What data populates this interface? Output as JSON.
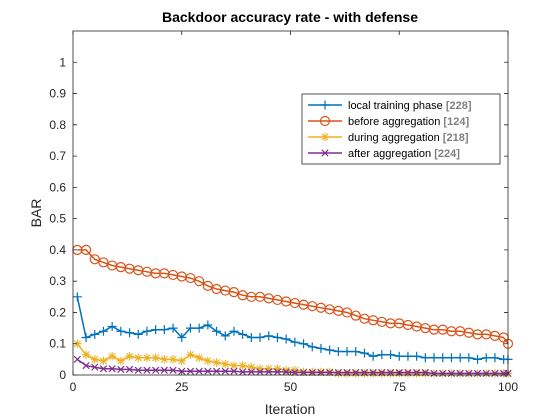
{
  "chart_data": {
    "type": "line",
    "title": "Backdoor accuracy rate - with defense",
    "xlabel": "Iteration",
    "ylabel": "BAR",
    "xlim": [
      0,
      100
    ],
    "ylim": [
      0,
      1.1
    ],
    "xticks": [
      0,
      25,
      50,
      75,
      100
    ],
    "yticks": [
      0,
      0.1,
      0.2,
      0.3,
      0.4,
      0.5,
      0.6,
      0.7,
      0.8,
      0.9,
      1
    ],
    "ytick_labels": [
      "0",
      "0.1",
      "0.2",
      "0.3",
      "0.4",
      "0.5",
      "0.6",
      "0.7",
      "0.8",
      "0.9",
      "1"
    ],
    "xtick_labels": [
      "0",
      "25",
      "50",
      "75",
      "100"
    ],
    "legend_position": "top-right",
    "grid": false,
    "x": [
      1,
      3,
      5,
      7,
      9,
      11,
      13,
      15,
      17,
      19,
      21,
      23,
      25,
      27,
      29,
      31,
      33,
      35,
      37,
      39,
      41,
      43,
      45,
      47,
      49,
      51,
      53,
      55,
      57,
      59,
      61,
      63,
      65,
      67,
      69,
      71,
      73,
      75,
      77,
      79,
      81,
      83,
      85,
      87,
      89,
      91,
      93,
      95,
      97,
      99,
      100
    ],
    "series": [
      {
        "name": "local training phase",
        "count": "[228]",
        "color": "#0072BD",
        "marker": "plus",
        "values": [
          0.25,
          0.12,
          0.13,
          0.14,
          0.155,
          0.14,
          0.135,
          0.13,
          0.14,
          0.145,
          0.145,
          0.15,
          0.12,
          0.15,
          0.15,
          0.16,
          0.14,
          0.125,
          0.14,
          0.13,
          0.12,
          0.12,
          0.125,
          0.12,
          0.115,
          0.105,
          0.1,
          0.09,
          0.085,
          0.08,
          0.075,
          0.075,
          0.075,
          0.07,
          0.06,
          0.065,
          0.065,
          0.06,
          0.06,
          0.06,
          0.055,
          0.055,
          0.055,
          0.055,
          0.055,
          0.055,
          0.05,
          0.055,
          0.055,
          0.05,
          0.05
        ]
      },
      {
        "name": "before aggregation",
        "count": "[124]",
        "color": "#D95319",
        "marker": "circle",
        "values": [
          0.4,
          0.4,
          0.37,
          0.36,
          0.35,
          0.345,
          0.34,
          0.335,
          0.33,
          0.325,
          0.325,
          0.32,
          0.315,
          0.31,
          0.3,
          0.285,
          0.275,
          0.27,
          0.265,
          0.255,
          0.25,
          0.25,
          0.245,
          0.24,
          0.235,
          0.23,
          0.225,
          0.22,
          0.215,
          0.21,
          0.205,
          0.2,
          0.19,
          0.18,
          0.175,
          0.17,
          0.165,
          0.165,
          0.16,
          0.155,
          0.15,
          0.145,
          0.145,
          0.14,
          0.14,
          0.135,
          0.13,
          0.13,
          0.125,
          0.12,
          0.1
        ]
      },
      {
        "name": "during aggregation",
        "count": "[218]",
        "color": "#EDB120",
        "marker": "asterisk",
        "values": [
          0.1,
          0.065,
          0.05,
          0.045,
          0.06,
          0.045,
          0.06,
          0.055,
          0.055,
          0.055,
          0.05,
          0.05,
          0.045,
          0.065,
          0.055,
          0.045,
          0.04,
          0.035,
          0.03,
          0.03,
          0.025,
          0.02,
          0.02,
          0.02,
          0.015,
          0.015,
          0.01,
          0.01,
          0.01,
          0.01,
          0.005,
          0.005,
          0.005,
          0.005,
          0.005,
          0.005,
          0.005,
          0.005,
          0.005,
          0.005,
          0.005,
          0.005,
          0.005,
          0.005,
          0.005,
          0.005,
          0.005,
          0.005,
          0.005,
          0.005,
          0.005
        ]
      },
      {
        "name": "after aggregation",
        "count": "[224]",
        "color": "#7E2F8E",
        "marker": "x",
        "values": [
          0.05,
          0.03,
          0.025,
          0.02,
          0.02,
          0.018,
          0.018,
          0.015,
          0.015,
          0.015,
          0.015,
          0.015,
          0.012,
          0.012,
          0.012,
          0.012,
          0.012,
          0.012,
          0.012,
          0.01,
          0.01,
          0.01,
          0.01,
          0.01,
          0.01,
          0.008,
          0.008,
          0.008,
          0.008,
          0.008,
          0.008,
          0.008,
          0.008,
          0.008,
          0.008,
          0.008,
          0.008,
          0.008,
          0.008,
          0.008,
          0.008,
          0.005,
          0.005,
          0.005,
          0.005,
          0.005,
          0.005,
          0.005,
          0.005,
          0.005,
          0.005
        ]
      }
    ]
  }
}
